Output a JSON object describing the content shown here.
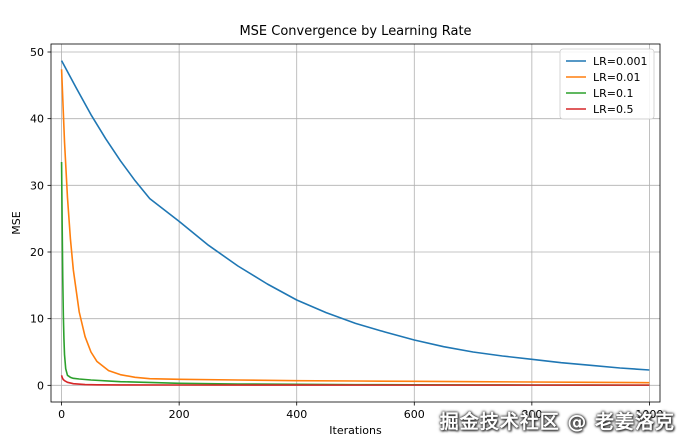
{
  "chart_data": {
    "type": "line",
    "title": "MSE Convergence by Learning Rate",
    "xlabel": "Iterations",
    "ylabel": "MSE",
    "xlim": [
      -18,
      1018
    ],
    "ylim": [
      -2.5,
      51.2
    ],
    "xticks": [
      0,
      200,
      400,
      600,
      800,
      1000
    ],
    "yticks": [
      0,
      10,
      20,
      30,
      40,
      50
    ],
    "xtick_labels": [
      "0",
      "200",
      "400",
      "600",
      "800",
      "1000"
    ],
    "ytick_labels": [
      "0",
      "10",
      "20",
      "30",
      "40",
      "50"
    ],
    "grid": true,
    "legend_position": "top-right",
    "series": [
      {
        "name": "LR=0.001",
        "color": "#1f77b4",
        "x": [
          0,
          25,
          50,
          75,
          100,
          125,
          150,
          200,
          250,
          300,
          350,
          400,
          450,
          500,
          550,
          600,
          650,
          700,
          750,
          800,
          850,
          900,
          950,
          1000
        ],
        "y": [
          48.7,
          44.6,
          40.6,
          37.0,
          33.7,
          30.7,
          28.0,
          24.6,
          21.0,
          17.9,
          15.2,
          12.8,
          10.9,
          9.3,
          8.0,
          6.8,
          5.8,
          5.0,
          4.4,
          3.9,
          3.4,
          3.0,
          2.6,
          2.3
        ]
      },
      {
        "name": "LR=0.01",
        "color": "#ff7f0e",
        "x": [
          0,
          5,
          10,
          15,
          20,
          30,
          40,
          50,
          60,
          80,
          100,
          125,
          150,
          200,
          300,
          400,
          500,
          600,
          700,
          800,
          900,
          1000
        ],
        "y": [
          47.4,
          36.5,
          28.2,
          22.0,
          17.3,
          11.0,
          7.3,
          5.0,
          3.6,
          2.2,
          1.6,
          1.2,
          1.0,
          0.9,
          0.8,
          0.7,
          0.65,
          0.6,
          0.55,
          0.5,
          0.45,
          0.4
        ]
      },
      {
        "name": "LR=0.1",
        "color": "#2ca02c",
        "x": [
          0,
          1,
          2,
          3,
          4,
          5,
          7,
          10,
          15,
          20,
          30,
          50,
          100,
          200,
          300,
          400,
          500,
          600,
          700,
          800,
          900,
          1000
        ],
        "y": [
          33.5,
          24.0,
          16.0,
          10.5,
          7.0,
          4.6,
          2.5,
          1.5,
          1.2,
          1.05,
          0.95,
          0.8,
          0.55,
          0.3,
          0.2,
          0.15,
          0.1,
          0.08,
          0.06,
          0.05,
          0.04,
          0.03
        ]
      },
      {
        "name": "LR=0.5",
        "color": "#d62728",
        "x": [
          0,
          1,
          2,
          3,
          5,
          10,
          20,
          40,
          60,
          100,
          200,
          400,
          600,
          800,
          1000
        ],
        "y": [
          1.5,
          1.2,
          1.0,
          0.85,
          0.7,
          0.45,
          0.25,
          0.12,
          0.08,
          0.06,
          0.05,
          0.04,
          0.03,
          0.03,
          0.03
        ]
      }
    ]
  },
  "watermark": "掘金技术社区 @ 老姜洛克"
}
